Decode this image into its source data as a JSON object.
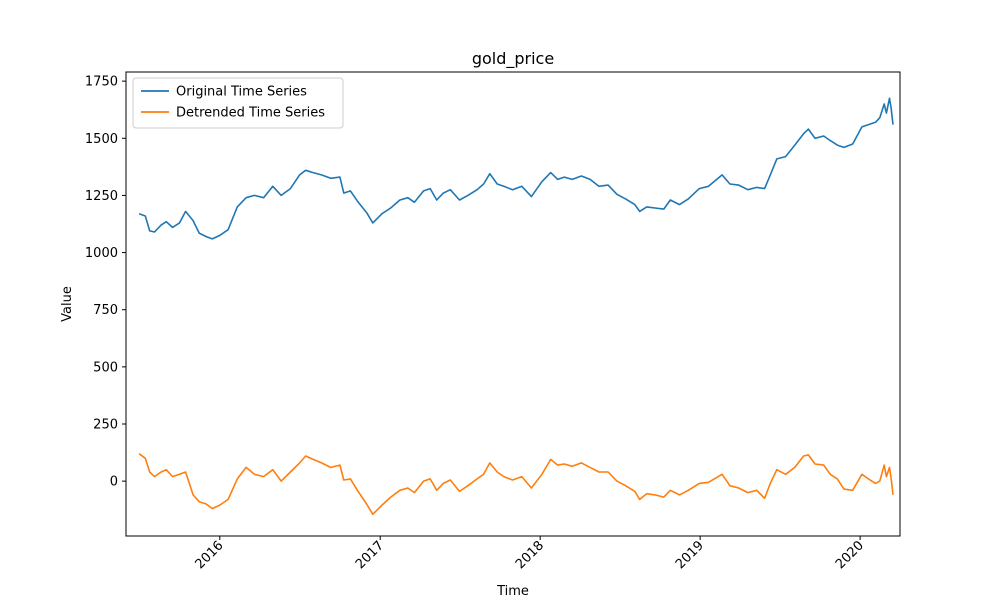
{
  "chart_data": {
    "type": "line",
    "title": "gold_price",
    "xlabel": "Time",
    "ylabel": "Value",
    "x_range": [
      "2015-06-01",
      "2020-04-01"
    ],
    "ylim": [
      -240,
      1790
    ],
    "x_ticks": [
      "2016",
      "2017",
      "2018",
      "2019",
      "2020"
    ],
    "x_tick_values": [
      "2016-01-01",
      "2017-01-01",
      "2018-01-01",
      "2019-01-01",
      "2020-01-01"
    ],
    "x_tick_rotation": 45,
    "y_ticks": [
      0,
      250,
      500,
      750,
      1000,
      1250,
      1500,
      1750
    ],
    "grid": false,
    "legend_position": "top-left",
    "series": [
      {
        "name": "Original Time Series",
        "color": "#1f77b4",
        "points": [
          [
            "2015-07-01",
            1170
          ],
          [
            "2015-07-15",
            1160
          ],
          [
            "2015-07-25",
            1095
          ],
          [
            "2015-08-05",
            1090
          ],
          [
            "2015-08-20",
            1120
          ],
          [
            "2015-09-01",
            1135
          ],
          [
            "2015-09-15",
            1110
          ],
          [
            "2015-10-01",
            1130
          ],
          [
            "2015-10-15",
            1180
          ],
          [
            "2015-11-01",
            1140
          ],
          [
            "2015-11-15",
            1085
          ],
          [
            "2015-12-01",
            1070
          ],
          [
            "2015-12-15",
            1060
          ],
          [
            "2016-01-01",
            1075
          ],
          [
            "2016-01-20",
            1100
          ],
          [
            "2016-02-10",
            1200
          ],
          [
            "2016-03-01",
            1240
          ],
          [
            "2016-03-20",
            1250
          ],
          [
            "2016-04-10",
            1240
          ],
          [
            "2016-05-01",
            1290
          ],
          [
            "2016-05-20",
            1250
          ],
          [
            "2016-06-10",
            1280
          ],
          [
            "2016-07-01",
            1340
          ],
          [
            "2016-07-15",
            1360
          ],
          [
            "2016-08-01",
            1350
          ],
          [
            "2016-08-20",
            1340
          ],
          [
            "2016-09-10",
            1325
          ],
          [
            "2016-10-01",
            1330
          ],
          [
            "2016-10-10",
            1260
          ],
          [
            "2016-10-25",
            1270
          ],
          [
            "2016-11-10",
            1225
          ],
          [
            "2016-12-01",
            1175
          ],
          [
            "2016-12-15",
            1130
          ],
          [
            "2017-01-05",
            1170
          ],
          [
            "2017-01-25",
            1195
          ],
          [
            "2017-02-15",
            1230
          ],
          [
            "2017-03-05",
            1240
          ],
          [
            "2017-03-20",
            1220
          ],
          [
            "2017-04-10",
            1270
          ],
          [
            "2017-04-25",
            1280
          ],
          [
            "2017-05-10",
            1230
          ],
          [
            "2017-05-25",
            1260
          ],
          [
            "2017-06-10",
            1275
          ],
          [
            "2017-07-01",
            1230
          ],
          [
            "2017-07-20",
            1250
          ],
          [
            "2017-08-10",
            1275
          ],
          [
            "2017-08-25",
            1300
          ],
          [
            "2017-09-08",
            1345
          ],
          [
            "2017-09-25",
            1300
          ],
          [
            "2017-10-10",
            1290
          ],
          [
            "2017-10-30",
            1275
          ],
          [
            "2017-11-20",
            1290
          ],
          [
            "2017-12-12",
            1245
          ],
          [
            "2018-01-05",
            1310
          ],
          [
            "2018-01-25",
            1350
          ],
          [
            "2018-02-10",
            1320
          ],
          [
            "2018-02-25",
            1330
          ],
          [
            "2018-03-15",
            1320
          ],
          [
            "2018-04-05",
            1335
          ],
          [
            "2018-04-25",
            1320
          ],
          [
            "2018-05-15",
            1290
          ],
          [
            "2018-06-05",
            1295
          ],
          [
            "2018-06-25",
            1255
          ],
          [
            "2018-07-15",
            1235
          ],
          [
            "2018-08-05",
            1210
          ],
          [
            "2018-08-16",
            1180
          ],
          [
            "2018-09-01",
            1200
          ],
          [
            "2018-09-20",
            1195
          ],
          [
            "2018-10-10",
            1190
          ],
          [
            "2018-10-25",
            1230
          ],
          [
            "2018-11-15",
            1210
          ],
          [
            "2018-12-05",
            1235
          ],
          [
            "2018-12-30",
            1280
          ],
          [
            "2019-01-20",
            1290
          ],
          [
            "2019-02-20",
            1340
          ],
          [
            "2019-03-10",
            1300
          ],
          [
            "2019-03-30",
            1295
          ],
          [
            "2019-04-20",
            1275
          ],
          [
            "2019-05-10",
            1285
          ],
          [
            "2019-05-28",
            1280
          ],
          [
            "2019-06-10",
            1340
          ],
          [
            "2019-06-25",
            1410
          ],
          [
            "2019-07-15",
            1420
          ],
          [
            "2019-08-05",
            1470
          ],
          [
            "2019-08-25",
            1520
          ],
          [
            "2019-09-05",
            1540
          ],
          [
            "2019-09-20",
            1500
          ],
          [
            "2019-10-10",
            1510
          ],
          [
            "2019-10-25",
            1490
          ],
          [
            "2019-11-10",
            1470
          ],
          [
            "2019-11-25",
            1460
          ],
          [
            "2019-12-15",
            1475
          ],
          [
            "2020-01-05",
            1550
          ],
          [
            "2020-01-20",
            1560
          ],
          [
            "2020-02-05",
            1570
          ],
          [
            "2020-02-15",
            1590
          ],
          [
            "2020-02-25",
            1650
          ],
          [
            "2020-03-01",
            1610
          ],
          [
            "2020-03-08",
            1675
          ],
          [
            "2020-03-12",
            1630
          ],
          [
            "2020-03-16",
            1560
          ]
        ]
      },
      {
        "name": "Detrended Time Series",
        "color": "#ff7f0e",
        "points": [
          [
            "2015-07-01",
            120
          ],
          [
            "2015-07-15",
            100
          ],
          [
            "2015-07-25",
            40
          ],
          [
            "2015-08-05",
            20
          ],
          [
            "2015-08-20",
            40
          ],
          [
            "2015-09-01",
            50
          ],
          [
            "2015-09-15",
            20
          ],
          [
            "2015-10-01",
            30
          ],
          [
            "2015-10-15",
            40
          ],
          [
            "2015-11-01",
            -60
          ],
          [
            "2015-11-15",
            -90
          ],
          [
            "2015-12-01",
            -100
          ],
          [
            "2015-12-15",
            -120
          ],
          [
            "2016-01-01",
            -105
          ],
          [
            "2016-01-20",
            -80
          ],
          [
            "2016-02-10",
            10
          ],
          [
            "2016-03-01",
            60
          ],
          [
            "2016-03-20",
            30
          ],
          [
            "2016-04-10",
            20
          ],
          [
            "2016-05-01",
            50
          ],
          [
            "2016-05-20",
            0
          ],
          [
            "2016-06-10",
            40
          ],
          [
            "2016-07-01",
            80
          ],
          [
            "2016-07-15",
            110
          ],
          [
            "2016-08-01",
            95
          ],
          [
            "2016-08-20",
            80
          ],
          [
            "2016-09-10",
            60
          ],
          [
            "2016-10-01",
            70
          ],
          [
            "2016-10-10",
            5
          ],
          [
            "2016-10-25",
            10
          ],
          [
            "2016-11-10",
            -40
          ],
          [
            "2016-12-01",
            -100
          ],
          [
            "2016-12-15",
            -145
          ],
          [
            "2017-01-05",
            -105
          ],
          [
            "2017-01-25",
            -70
          ],
          [
            "2017-02-15",
            -40
          ],
          [
            "2017-03-05",
            -30
          ],
          [
            "2017-03-20",
            -50
          ],
          [
            "2017-04-10",
            0
          ],
          [
            "2017-04-25",
            10
          ],
          [
            "2017-05-10",
            -40
          ],
          [
            "2017-05-25",
            -10
          ],
          [
            "2017-06-10",
            5
          ],
          [
            "2017-07-01",
            -45
          ],
          [
            "2017-07-20",
            -20
          ],
          [
            "2017-08-10",
            10
          ],
          [
            "2017-08-25",
            30
          ],
          [
            "2017-09-08",
            80
          ],
          [
            "2017-09-25",
            40
          ],
          [
            "2017-10-10",
            20
          ],
          [
            "2017-10-30",
            5
          ],
          [
            "2017-11-20",
            20
          ],
          [
            "2017-12-12",
            -30
          ],
          [
            "2018-01-05",
            30
          ],
          [
            "2018-01-25",
            95
          ],
          [
            "2018-02-10",
            70
          ],
          [
            "2018-02-25",
            75
          ],
          [
            "2018-03-15",
            65
          ],
          [
            "2018-04-05",
            80
          ],
          [
            "2018-04-25",
            60
          ],
          [
            "2018-05-15",
            40
          ],
          [
            "2018-06-05",
            40
          ],
          [
            "2018-06-25",
            0
          ],
          [
            "2018-07-15",
            -20
          ],
          [
            "2018-08-05",
            -45
          ],
          [
            "2018-08-16",
            -80
          ],
          [
            "2018-09-01",
            -55
          ],
          [
            "2018-09-20",
            -60
          ],
          [
            "2018-10-10",
            -70
          ],
          [
            "2018-10-25",
            -40
          ],
          [
            "2018-11-15",
            -60
          ],
          [
            "2018-12-05",
            -40
          ],
          [
            "2018-12-30",
            -10
          ],
          [
            "2019-01-20",
            -5
          ],
          [
            "2019-02-20",
            30
          ],
          [
            "2019-03-10",
            -20
          ],
          [
            "2019-03-30",
            -30
          ],
          [
            "2019-04-20",
            -50
          ],
          [
            "2019-05-10",
            -40
          ],
          [
            "2019-05-28",
            -75
          ],
          [
            "2019-06-10",
            -10
          ],
          [
            "2019-06-25",
            50
          ],
          [
            "2019-07-15",
            30
          ],
          [
            "2019-08-05",
            60
          ],
          [
            "2019-08-25",
            110
          ],
          [
            "2019-09-05",
            115
          ],
          [
            "2019-09-20",
            75
          ],
          [
            "2019-10-10",
            70
          ],
          [
            "2019-10-25",
            30
          ],
          [
            "2019-11-10",
            10
          ],
          [
            "2019-11-25",
            -35
          ],
          [
            "2019-12-15",
            -40
          ],
          [
            "2020-01-05",
            30
          ],
          [
            "2020-01-20",
            10
          ],
          [
            "2020-02-05",
            -10
          ],
          [
            "2020-02-15",
            0
          ],
          [
            "2020-02-25",
            70
          ],
          [
            "2020-03-01",
            20
          ],
          [
            "2020-03-08",
            60
          ],
          [
            "2020-03-12",
            10
          ],
          [
            "2020-03-16",
            -60
          ]
        ]
      }
    ]
  }
}
